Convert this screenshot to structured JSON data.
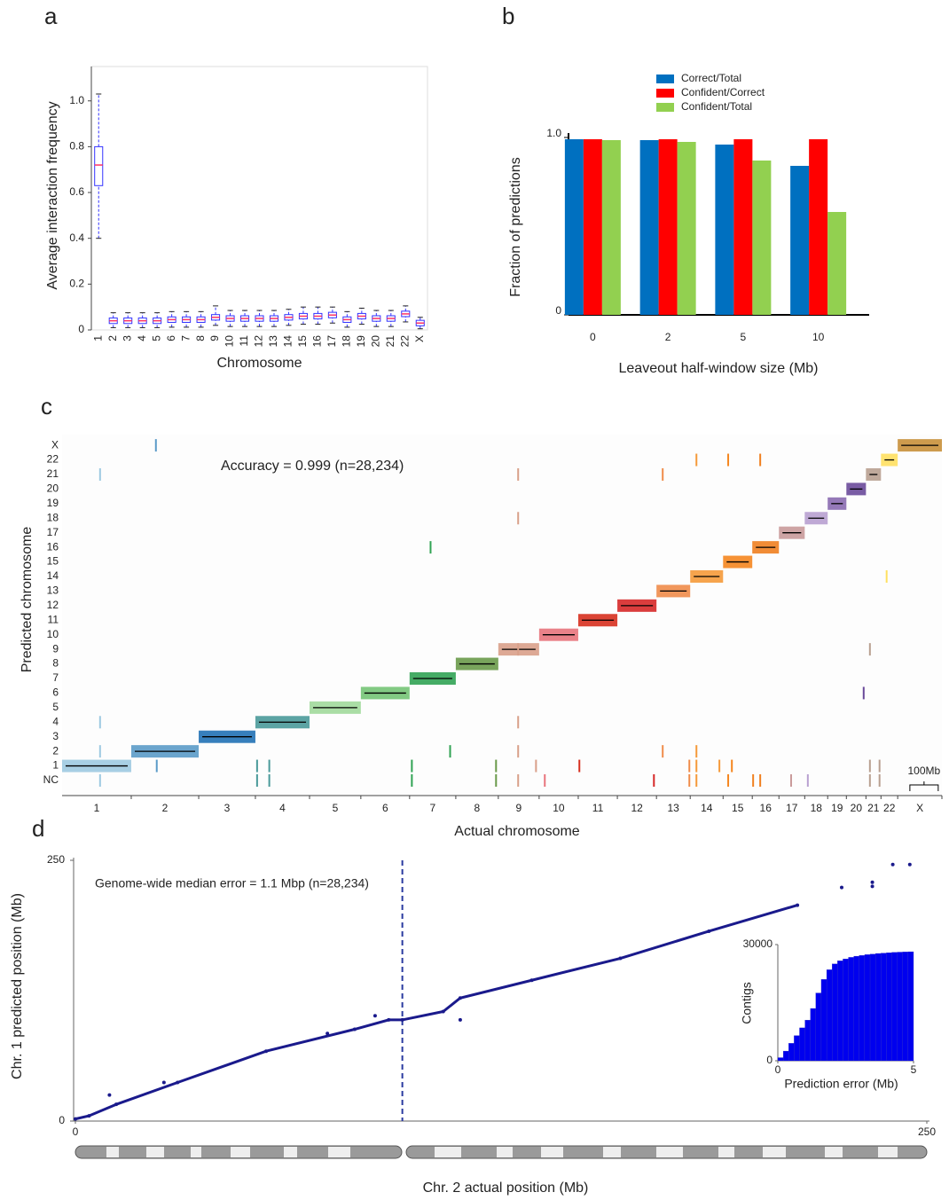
{
  "chart_data": [
    {
      "panel": "a",
      "type": "box",
      "categories": [
        "1",
        "2",
        "3",
        "4",
        "5",
        "6",
        "7",
        "8",
        "9",
        "10",
        "11",
        "12",
        "13",
        "14",
        "15",
        "16",
        "17",
        "18",
        "19",
        "20",
        "21",
        "22",
        "X"
      ],
      "whislo": [
        0.4,
        0.01,
        0.01,
        0.01,
        0.01,
        0.012,
        0.012,
        0.012,
        0.02,
        0.015,
        0.015,
        0.015,
        0.015,
        0.02,
        0.025,
        0.025,
        0.03,
        0.012,
        0.025,
        0.015,
        0.015,
        0.035,
        0.005
      ],
      "q1": [
        0.63,
        0.028,
        0.028,
        0.028,
        0.028,
        0.033,
        0.033,
        0.033,
        0.043,
        0.038,
        0.038,
        0.038,
        0.038,
        0.043,
        0.048,
        0.048,
        0.053,
        0.033,
        0.048,
        0.038,
        0.038,
        0.058,
        0.018
      ],
      "median": [
        0.72,
        0.04,
        0.04,
        0.04,
        0.04,
        0.045,
        0.045,
        0.045,
        0.055,
        0.05,
        0.05,
        0.05,
        0.05,
        0.055,
        0.06,
        0.06,
        0.065,
        0.045,
        0.06,
        0.05,
        0.05,
        0.07,
        0.03
      ],
      "q3": [
        0.8,
        0.052,
        0.052,
        0.052,
        0.052,
        0.057,
        0.057,
        0.057,
        0.067,
        0.062,
        0.062,
        0.062,
        0.062,
        0.067,
        0.072,
        0.072,
        0.077,
        0.057,
        0.072,
        0.062,
        0.062,
        0.082,
        0.042
      ],
      "whishi": [
        1.03,
        0.075,
        0.075,
        0.075,
        0.075,
        0.08,
        0.08,
        0.08,
        0.105,
        0.085,
        0.085,
        0.085,
        0.085,
        0.09,
        0.1,
        0.1,
        0.1,
        0.08,
        0.095,
        0.085,
        0.085,
        0.105,
        0.055
      ],
      "ylim": [
        0,
        1.15
      ],
      "yticks": [
        0,
        0.2,
        0.4,
        0.6,
        0.8,
        {
          "value": 1,
          "label": "1.0"
        }
      ],
      "xlabel": "Chromosome",
      "ylabel": "Average interaction frequency",
      "box_color": "#3333ff",
      "median_color": "#ff3366"
    },
    {
      "panel": "b",
      "type": "bar",
      "categories": [
        "0",
        "2",
        "5",
        "10"
      ],
      "series": [
        {
          "name": "Correct/Total",
          "color": "#0070c0",
          "values": [
            0.99,
            0.985,
            0.96,
            0.84
          ]
        },
        {
          "name": "Confident/Correct",
          "color": "#ff0000",
          "values": [
            0.99,
            0.99,
            0.99,
            0.99
          ]
        },
        {
          "name": "Confident/Total",
          "color": "#92d050",
          "values": [
            0.985,
            0.975,
            0.87,
            0.58
          ]
        }
      ],
      "ylim": [
        0,
        1
      ],
      "yticks": [
        0,
        {
          "value": 1,
          "label": "1.0"
        }
      ],
      "legend": "top",
      "xlabel": "Leaveout half-window size (Mb)",
      "ylabel": "Fraction of predictions"
    },
    {
      "panel": "c",
      "type": "matrix",
      "categories": [
        "1",
        "2",
        "3",
        "4",
        "5",
        "6",
        "7",
        "8",
        "9",
        "10",
        "11",
        "12",
        "13",
        "14",
        "15",
        "16",
        "17",
        "18",
        "19",
        "20",
        "21",
        "22",
        "X"
      ],
      "lengths": [
        244,
        238,
        200,
        191,
        181,
        172,
        163,
        150,
        144,
        138,
        138,
        138,
        119,
        116,
        103,
        94,
        91,
        81,
        66,
        69,
        53,
        59,
        156
      ],
      "colors": [
        "#9ecae1",
        "#5b9bc8",
        "#2171b5",
        "#4a9a9a",
        "#a1d99b",
        "#74c476",
        "#31a354",
        "#6a9a4a",
        "#d9a08a",
        "#e8747c",
        "#d7301f",
        "#d62828",
        "#f08c4a",
        "#f59a3a",
        "#f5861f",
        "#f08020",
        "#c99a9a",
        "#b8a0d0",
        "#8a6ab0",
        "#6a4a9a",
        "#b8a090",
        "#ffe060",
        "#c8903a"
      ],
      "ycategories": [
        "NC",
        "1",
        "2",
        "3",
        "4",
        "5",
        "6",
        "7",
        "8",
        "9",
        "10",
        "11",
        "12",
        "13",
        "14",
        "15",
        "16",
        "17",
        "18",
        "19",
        "20",
        "21",
        "22",
        "X"
      ],
      "xlim": [
        0,
        3104
      ],
      "error_x": [
        331,
        134,
        134,
        134,
        134,
        334,
        688,
        688,
        731,
        731,
        1300,
        1234,
        1234,
        1369,
        1531,
        1531,
        1609,
        1609,
        1609,
        1609,
        1609,
        1609,
        1672,
        1703,
        1825,
        2088,
        2119,
        2119,
        2213,
        2213,
        2238,
        2238,
        2238,
        2238,
        2319,
        2350,
        2350,
        2363,
        2438,
        2463,
        2463,
        2572,
        2631,
        2828,
        2850,
        2850,
        2850,
        2884,
        2884,
        2909
      ],
      "error_y": [
        "X",
        "21",
        "4",
        "2",
        "NC",
        "1",
        "1",
        "NC",
        "1",
        "NC",
        "16",
        "1",
        "NC",
        "2",
        "1",
        "NC",
        "21",
        "18",
        "9",
        "4",
        "2",
        "NC",
        "1",
        "NC",
        "1",
        "NC",
        "21",
        "2",
        "1",
        "NC",
        "22",
        "2",
        "1",
        "NC",
        "1",
        "22",
        "NC",
        "1",
        "NC",
        "22",
        "NC",
        "NC",
        "NC",
        "6",
        "9",
        "1",
        "NC",
        "1",
        "NC",
        "14"
      ],
      "annotation": "Accuracy = 0.999  (n=28,234)",
      "scale_bar": {
        "value": 100,
        "label": "100Mb"
      },
      "xlabel": "Actual chromosome",
      "ylabel": "Predicted chromosome"
    },
    {
      "panel": "d",
      "type": "scatter",
      "x": [
        0,
        4,
        12,
        30,
        56,
        82,
        92,
        96,
        108,
        113,
        134,
        160,
        186,
        212,
        225,
        234,
        240,
        245,
        10,
        26,
        88,
        113,
        74,
        234
      ],
      "y": [
        2,
        5,
        16,
        37,
        67,
        88,
        97,
        97,
        105,
        118,
        135,
        156,
        182,
        207,
        224,
        229,
        246,
        246,
        25,
        37,
        101,
        97,
        84,
        225
      ],
      "color": "#1a1a8c",
      "vline": 96,
      "xlim": [
        0,
        250
      ],
      "xticks": [
        0,
        250
      ],
      "ylim": [
        0,
        250
      ],
      "yticks": [
        0,
        250
      ],
      "annotation": "Genome-wide median error = 1.1 Mbp   (n=28,234)",
      "xlabel": "Chr. 2 actual position (Mb)",
      "ylabel": "Chr. 1 predicted position (Mb)",
      "inset": {
        "type": "histogram",
        "color": "#0000ee",
        "bins": [
          0,
          0.2,
          0.4,
          0.6,
          0.8,
          1,
          1.2,
          1.4,
          1.6,
          1.8,
          2,
          2.2,
          2.4,
          2.6,
          2.8,
          3,
          3.2,
          3.4,
          3.6,
          3.8,
          4,
          4.2,
          4.4,
          4.6,
          4.8,
          5
        ],
        "counts": [
          800,
          2500,
          4500,
          6500,
          8500,
          10500,
          13500,
          17500,
          21000,
          23500,
          25000,
          25800,
          26300,
          26700,
          27000,
          27200,
          27400,
          27550,
          27700,
          27800,
          27900,
          28000,
          28050,
          28100,
          28150
        ],
        "xlim": [
          0,
          5
        ],
        "xticks": [
          0,
          5
        ],
        "ylim": [
          0,
          30000
        ],
        "yticks": [
          0,
          30000
        ],
        "xlabel": "Prediction error (Mb)",
        "ylabel": "Contigs"
      }
    }
  ]
}
